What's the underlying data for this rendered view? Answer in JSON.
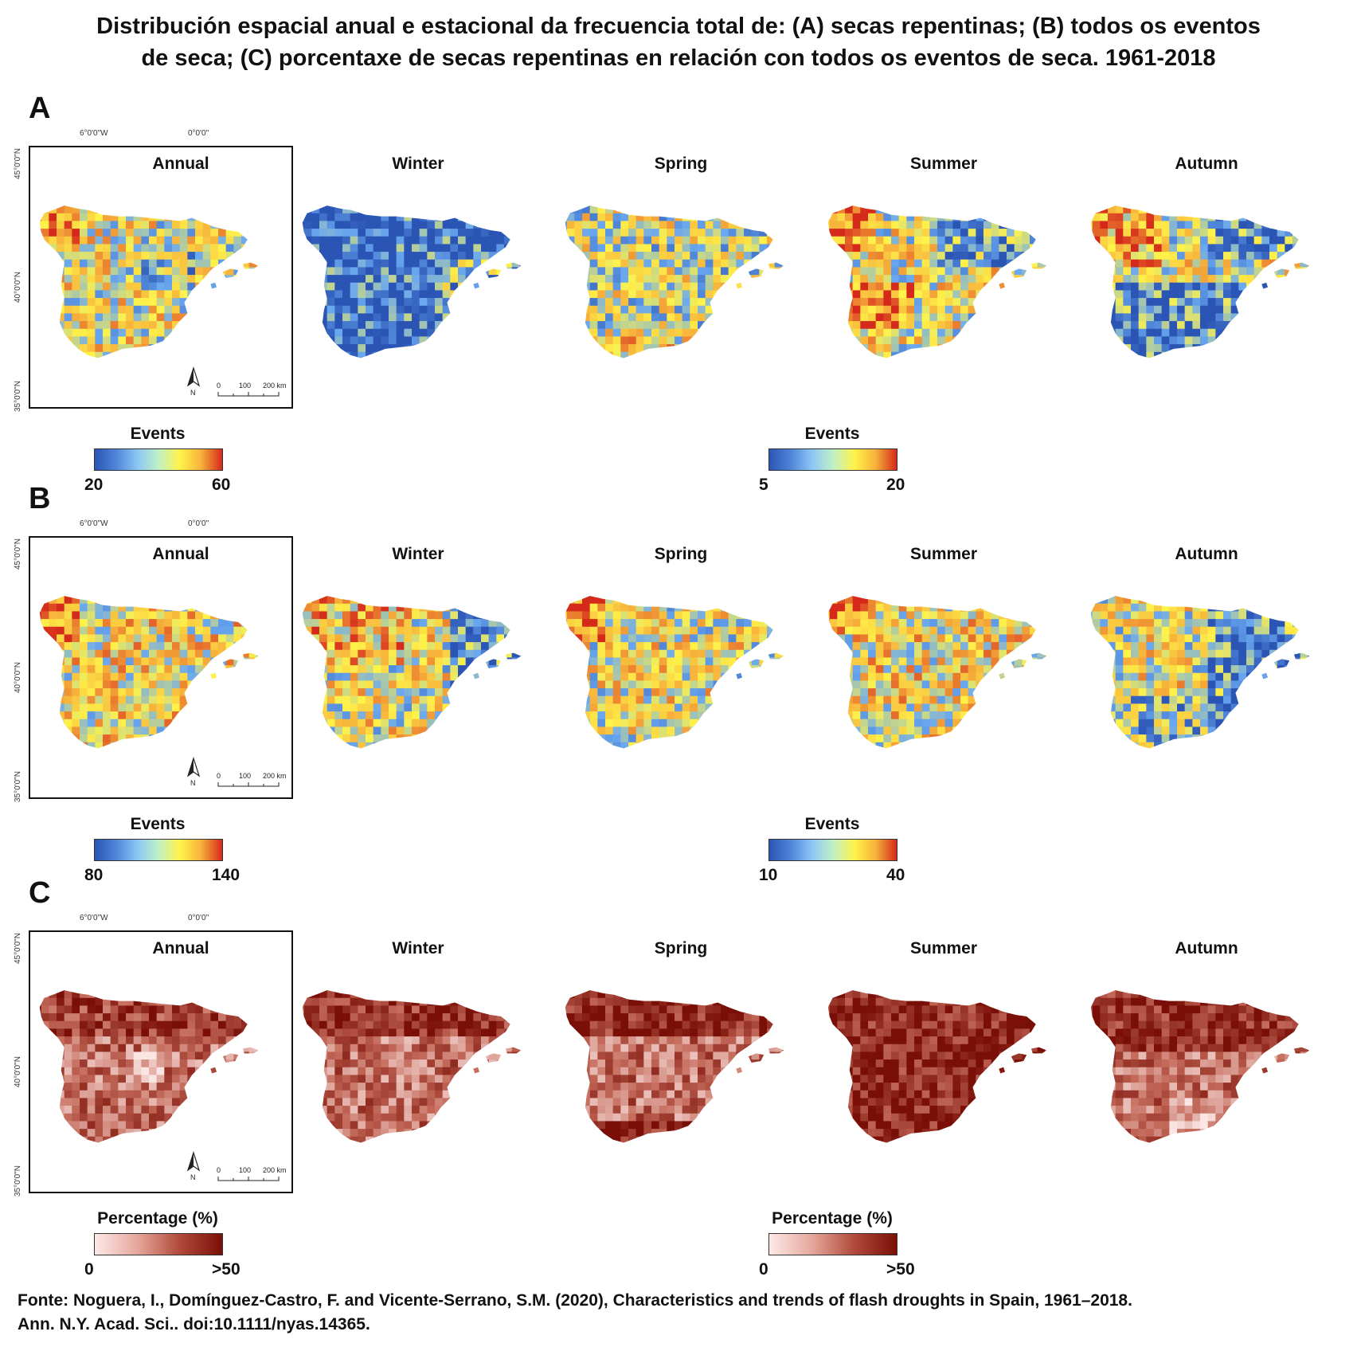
{
  "title_line1": "Distribución espacial anual e estacional da frecuencia total de: (A) secas repentinas; (B) todos os eventos",
  "title_line2": "de seca; (C) porcentaxe de secas repentinas en relación con todos os eventos de seca. 1961-2018",
  "axis_labels": {
    "lon_w": "6°0'0\"W",
    "lon_0": "0°0'0\"",
    "lat_45": "45°0'0\"N",
    "lat_40": "40°0'0\"N",
    "lat_35": "35°0'0\"N"
  },
  "north_label": "N",
  "scale_labels": [
    "0",
    "100",
    "200 km"
  ],
  "seasons": [
    "Annual",
    "Winter",
    "Spring",
    "Summer",
    "Autumn"
  ],
  "rows": [
    {
      "letter": "A",
      "palette": "diverging",
      "legend_annual": {
        "title": "Events",
        "min": "20",
        "max": "60"
      },
      "legend_seasonal": {
        "title": "Events",
        "min": "5",
        "max": "20"
      }
    },
    {
      "letter": "B",
      "palette": "diverging",
      "legend_annual": {
        "title": "Events",
        "min": "80",
        "max": "140"
      },
      "legend_seasonal": {
        "title": "Events",
        "min": "10",
        "max": "40"
      }
    },
    {
      "letter": "C",
      "palette": "sequential-red",
      "legend_annual": {
        "title": "Percentage (%)",
        "min": "0",
        "max": ">50"
      },
      "legend_seasonal": {
        "title": "Percentage (%)",
        "min": "0",
        "max": ">50"
      }
    }
  ],
  "colors": {
    "diverging": [
      "#2b55b5",
      "#6aa8f0",
      "#fff34a",
      "#f7b23b",
      "#d5291b"
    ],
    "sequential": [
      "#fbe6e4",
      "#c46a5a",
      "#7a0f07"
    ]
  },
  "source_line1": "Fonte: Noguera, I., Domínguez-Castro, F. and Vicente-Serrano, S.M. (2020), Characteristics and trends of flash droughts in Spain, 1961–2018.",
  "source_line2": "Ann. N.Y. Acad. Sci.. doi:10.1111/nyas.14365."
}
